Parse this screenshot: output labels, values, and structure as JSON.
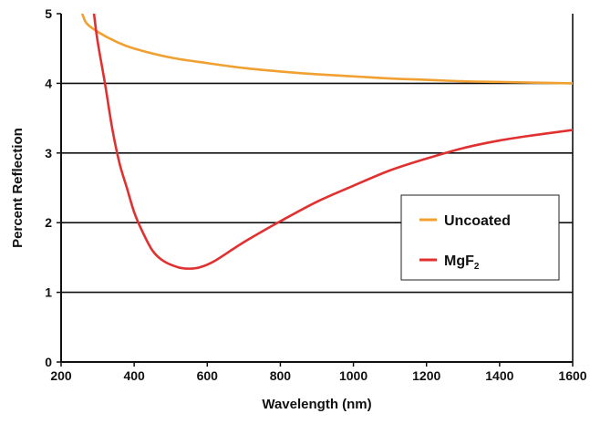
{
  "chart_data": {
    "type": "line",
    "title": "",
    "xlabel": "Wavelength (nm)",
    "ylabel": "Percent Reflection",
    "xlim": [
      200,
      1600
    ],
    "ylim": [
      0,
      5
    ],
    "x_ticks": [
      "200",
      "400",
      "600",
      "800",
      "1000",
      "1200",
      "1400",
      "1600"
    ],
    "y_ticks": [
      "0",
      "1",
      "2",
      "3",
      "4",
      "5"
    ],
    "grid": "horizontal",
    "legend_position": "right-middle",
    "series": [
      {
        "name": "Uncoated",
        "legend_label": "Uncoated",
        "color": "#f0a030",
        "points": [
          [
            258,
            5.0
          ],
          [
            270,
            4.86
          ],
          [
            300,
            4.74
          ],
          [
            350,
            4.6
          ],
          [
            400,
            4.5
          ],
          [
            500,
            4.37
          ],
          [
            600,
            4.29
          ],
          [
            700,
            4.22
          ],
          [
            800,
            4.17
          ],
          [
            900,
            4.13
          ],
          [
            1000,
            4.1
          ],
          [
            1100,
            4.07
          ],
          [
            1200,
            4.05
          ],
          [
            1300,
            4.03
          ],
          [
            1400,
            4.02
          ],
          [
            1500,
            4.01
          ],
          [
            1600,
            4.0
          ]
        ]
      },
      {
        "name": "MgF2",
        "legend_label": "MgF",
        "legend_subscript": "2",
        "color": "#e03030",
        "points": [
          [
            290,
            5.0
          ],
          [
            300,
            4.6
          ],
          [
            320,
            4.0
          ],
          [
            340,
            3.35
          ],
          [
            360,
            2.85
          ],
          [
            380,
            2.5
          ],
          [
            400,
            2.15
          ],
          [
            420,
            1.9
          ],
          [
            450,
            1.6
          ],
          [
            480,
            1.45
          ],
          [
            520,
            1.36
          ],
          [
            550,
            1.34
          ],
          [
            580,
            1.36
          ],
          [
            620,
            1.45
          ],
          [
            700,
            1.72
          ],
          [
            800,
            2.02
          ],
          [
            900,
            2.3
          ],
          [
            1000,
            2.53
          ],
          [
            1100,
            2.75
          ],
          [
            1200,
            2.92
          ],
          [
            1300,
            3.07
          ],
          [
            1400,
            3.18
          ],
          [
            1500,
            3.26
          ],
          [
            1600,
            3.33
          ]
        ]
      }
    ]
  }
}
